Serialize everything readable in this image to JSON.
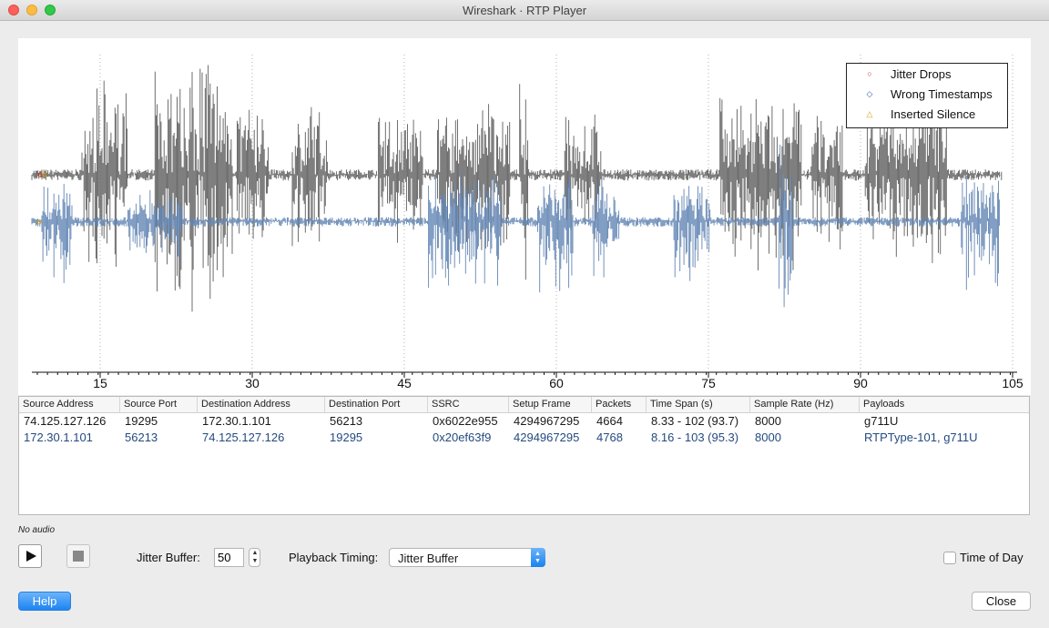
{
  "window": {
    "title": "Wireshark · RTP Player"
  },
  "plot": {
    "x_ticks": [
      "15",
      "30",
      "45",
      "60",
      "75",
      "90",
      "105"
    ],
    "legend": [
      {
        "label": "Jitter Drops",
        "marker": "○",
        "color": "#c0392b"
      },
      {
        "label": "Wrong Timestamps",
        "marker": "◇",
        "color": "#2f5fa8"
      },
      {
        "label": "Inserted Silence",
        "marker": "△",
        "color": "#d4a017"
      }
    ],
    "stream_colors": {
      "stream1": "#5f5f5f",
      "stream2": "#5b7fb0"
    }
  },
  "table": {
    "columns": [
      "Source Address",
      "Source Port",
      "Destination Address",
      "Destination Port",
      "SSRC",
      "Setup Frame",
      "Packets",
      "Time Span (s)",
      "Sample Rate (Hz)",
      "Payloads"
    ],
    "rows": [
      [
        "74.125.127.126",
        "19295",
        "172.30.1.101",
        "56213",
        "0x6022e955",
        "4294967295",
        "4664",
        "8.33 - 102 (93.7)",
        "8000",
        "g711U"
      ],
      [
        "172.30.1.101",
        "56213",
        "74.125.127.126",
        "19295",
        "0x20ef63f9",
        "4294967295",
        "4768",
        "8.16 - 103 (95.3)",
        "8000",
        "RTPType-101, g711U"
      ]
    ]
  },
  "status": {
    "audio": "No audio"
  },
  "controls": {
    "jitter_label": "Jitter Buffer:",
    "jitter_value": "50",
    "timing_label": "Playback Timing:",
    "timing_value": "Jitter Buffer",
    "time_of_day_label": "Time of Day",
    "time_of_day_checked": false
  },
  "buttons": {
    "help": "Help",
    "close": "Close"
  }
}
